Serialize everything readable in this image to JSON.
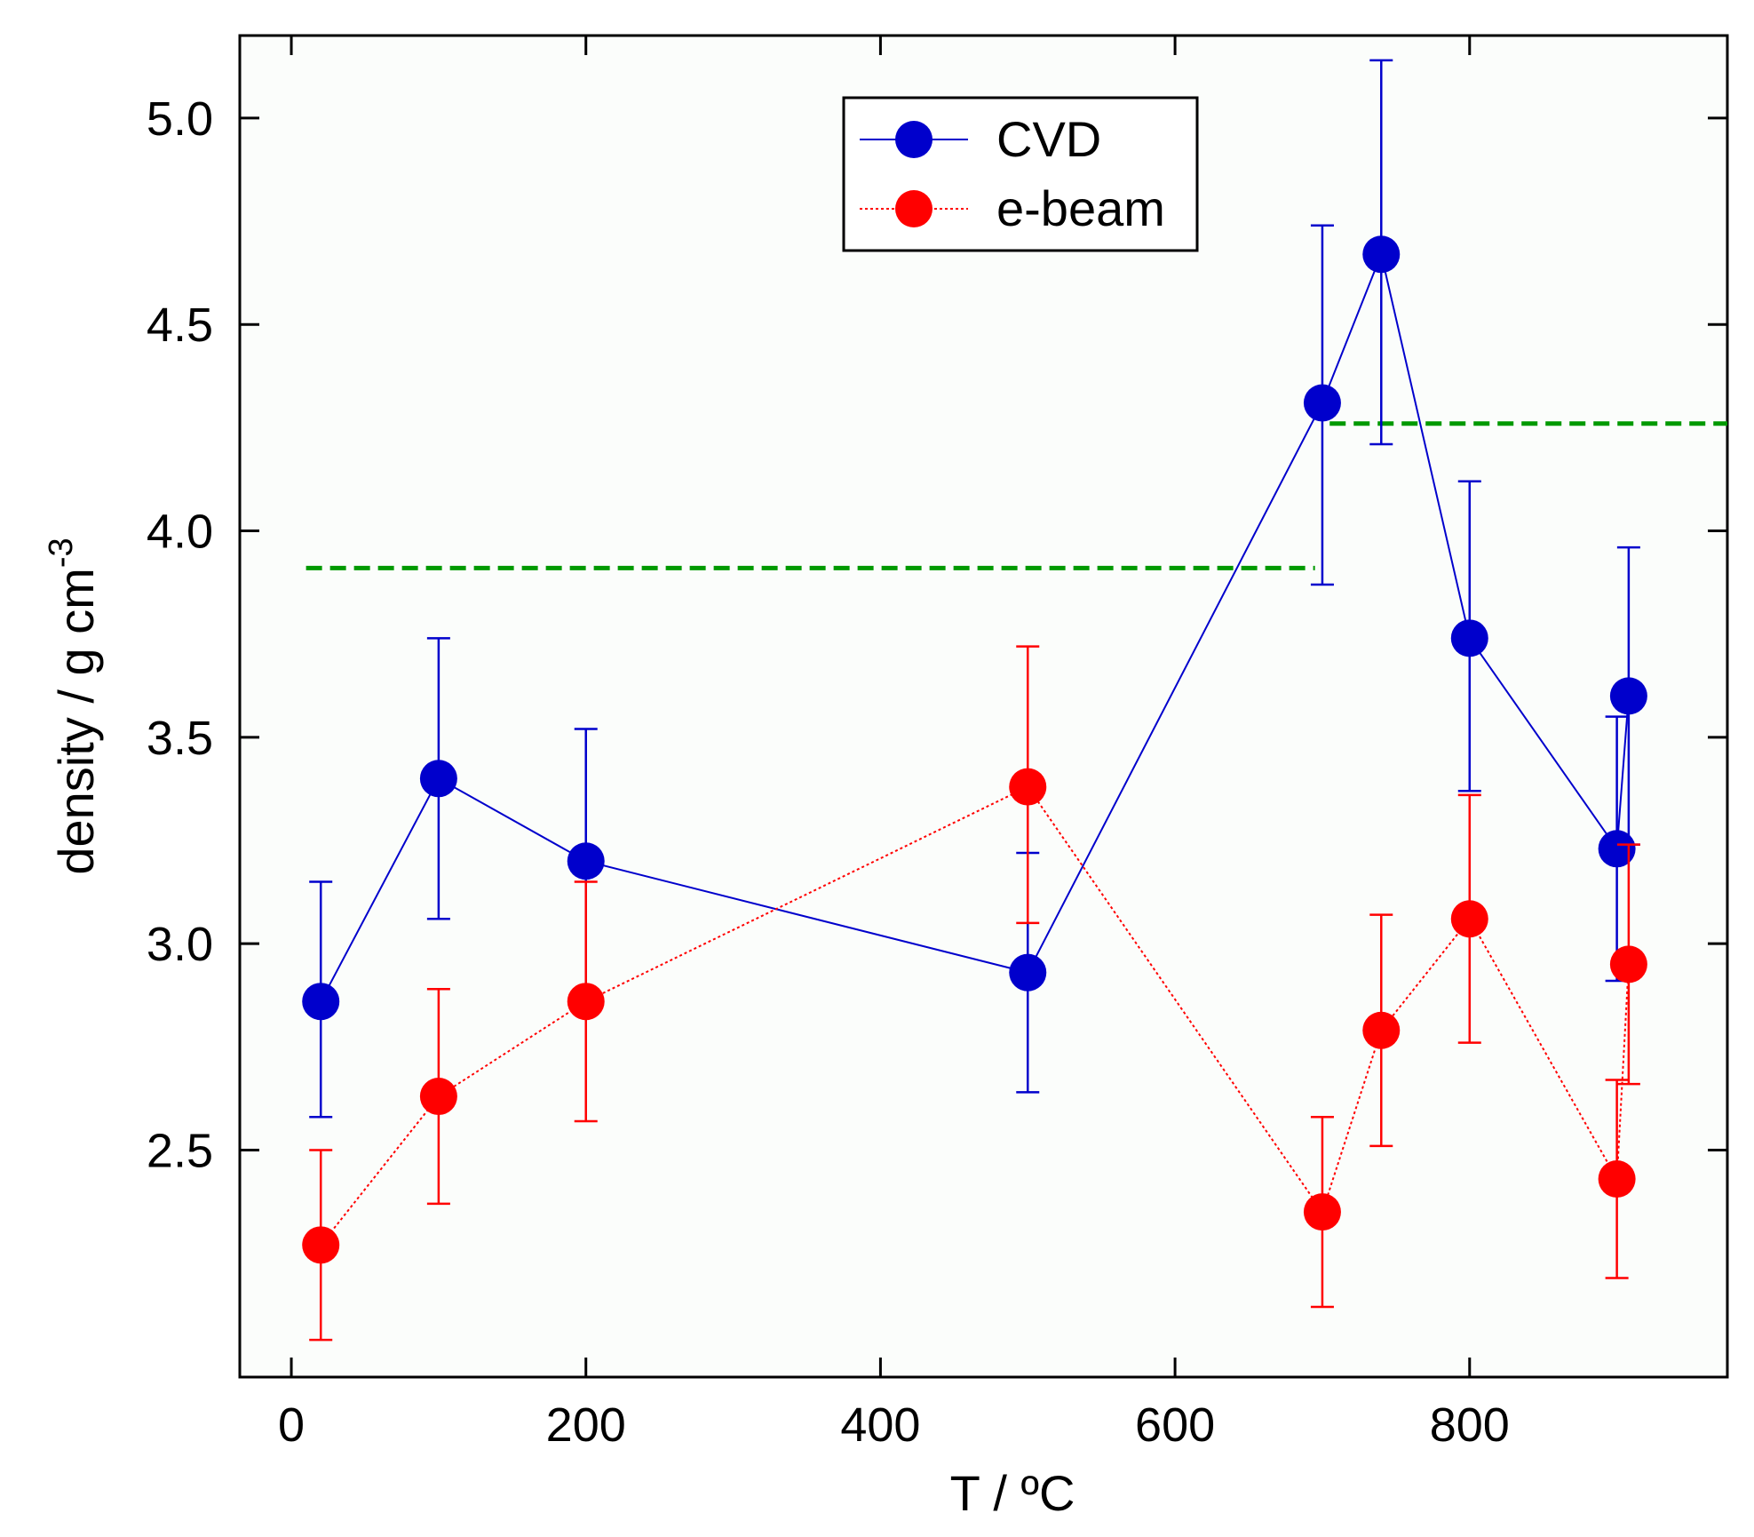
{
  "chart_data": {
    "type": "scatter",
    "title": "",
    "xlabel": "T / ",
    "xlabel_unit": "ºC",
    "ylabel": "density / g cm",
    "ylabel_exponent": "-3",
    "xlim": [
      -35,
      975
    ],
    "ylim": [
      1.95,
      5.2
    ],
    "x_ticks": [
      "0",
      "200",
      "400",
      "600",
      "800"
    ],
    "x_tick_values": [
      0,
      200,
      400,
      600,
      800
    ],
    "y_ticks": [
      "2.5",
      "3.0",
      "3.5",
      "4.0",
      "4.5",
      "5.0"
    ],
    "y_tick_values": [
      2.5,
      3.0,
      3.5,
      4.0,
      4.5,
      5.0
    ],
    "legend": {
      "position": "top-center",
      "entries": [
        "CVD",
        "e-beam"
      ]
    },
    "series": [
      {
        "name": "CVD",
        "color": "#0000cc",
        "line": "solid",
        "x": [
          20,
          100,
          200,
          500,
          700,
          740,
          800,
          900,
          908
        ],
        "y": [
          2.86,
          3.4,
          3.2,
          2.93,
          4.31,
          4.67,
          3.74,
          3.23,
          3.6
        ],
        "err_low": [
          0.28,
          0.34,
          0.32,
          0.29,
          0.44,
          0.46,
          0.37,
          0.32,
          0.36
        ],
        "err_high": [
          0.29,
          0.34,
          0.32,
          0.29,
          0.43,
          0.47,
          0.38,
          0.32,
          0.36
        ]
      },
      {
        "name": "e-beam",
        "color": "#ff0000",
        "line": "dotted",
        "x": [
          20,
          100,
          200,
          500,
          700,
          740,
          800,
          900,
          908
        ],
        "y": [
          2.27,
          2.63,
          2.86,
          3.38,
          2.35,
          2.79,
          3.06,
          2.43,
          2.95
        ],
        "err_low": [
          0.23,
          0.26,
          0.29,
          0.33,
          0.23,
          0.28,
          0.3,
          0.24,
          0.29
        ],
        "err_high": [
          0.23,
          0.26,
          0.29,
          0.34,
          0.23,
          0.28,
          0.3,
          0.24,
          0.29
        ]
      }
    ],
    "reference_lines": [
      {
        "name": "reference-low",
        "x": [
          10,
          695
        ],
        "y": 3.91,
        "color": "#009900",
        "style": "dashed"
      },
      {
        "name": "reference-high",
        "x": [
          705,
          975
        ],
        "y": 4.26,
        "color": "#009900",
        "style": "dashed"
      }
    ]
  }
}
